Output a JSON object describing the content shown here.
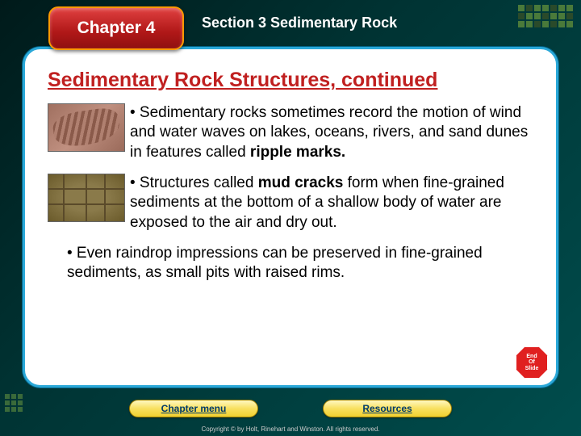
{
  "header": {
    "chapter_label": "Chapter 4",
    "section_label": "Section 3  Sedimentary Rock"
  },
  "title": {
    "main": "Sedimentary Rock Structures,",
    "cont": " continued"
  },
  "bullets": [
    {
      "pre": "• Sedimentary rocks sometimes record the motion of wind and water waves on lakes, oceans, rivers, and sand dunes in features called ",
      "bold": "ripple marks.",
      "post": "",
      "has_image": true,
      "image_kind": "ripple"
    },
    {
      "pre": "• Structures called ",
      "bold": "mud cracks",
      "post": " form when fine-grained sediments at the bottom of a shallow body of water are exposed to the air and dry out.",
      "has_image": true,
      "image_kind": "mud"
    },
    {
      "pre": "• Even raindrop impressions can be preserved in fine-grained sediments, as small pits with raised rims.",
      "bold": "",
      "post": "",
      "has_image": false
    }
  ],
  "end_badge": {
    "l1": "End",
    "l2": "Of",
    "l3": "Slide"
  },
  "nav": {
    "chapter_menu": "Chapter menu",
    "resources": "Resources"
  },
  "copyright": "Copyright © by Holt, Rinehart and Winston. All rights reserved.",
  "colors": {
    "title_color": "#c02020",
    "chapter_bg": "#b01818",
    "card_border": "#2aa8d8",
    "button_bg": "#f8e060",
    "button_text": "#003a6a"
  }
}
